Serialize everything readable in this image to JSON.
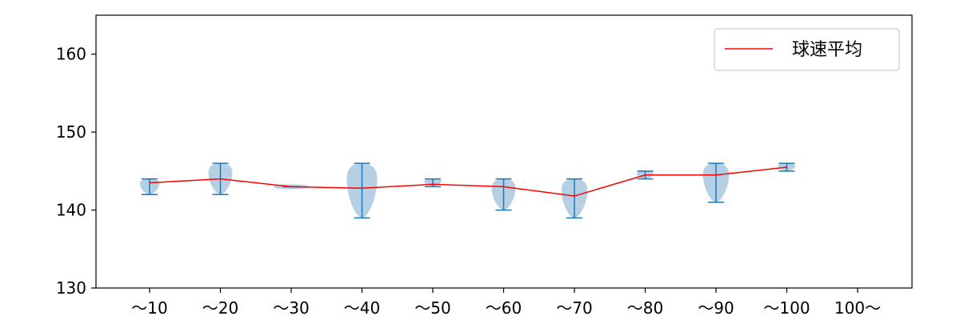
{
  "chart_data": {
    "type": "violin",
    "categories": [
      "〜10",
      "〜20",
      "〜30",
      "〜40",
      "〜50",
      "〜60",
      "〜70",
      "〜80",
      "〜90",
      "〜100",
      "100〜"
    ],
    "ylim": [
      130,
      165
    ],
    "yticks": [
      130,
      140,
      150,
      160
    ],
    "grid": false,
    "legend_position": "top-right",
    "series": [
      {
        "name": "球速平均",
        "type": "line",
        "color": "#ff0000",
        "values": [
          143.5,
          144.0,
          143.0,
          142.8,
          143.3,
          143.0,
          141.8,
          144.5,
          144.5,
          145.5,
          null
        ]
      }
    ],
    "distributions": [
      {
        "category": "〜10",
        "min": 142,
        "max": 144,
        "mean": 143.5
      },
      {
        "category": "〜20",
        "min": 142,
        "max": 146,
        "mean": 144.0
      },
      {
        "category": "〜30",
        "min": 143,
        "max": 143,
        "mean": 143.0
      },
      {
        "category": "〜40",
        "min": 139,
        "max": 146,
        "mean": 142.8
      },
      {
        "category": "〜50",
        "min": 143,
        "max": 144,
        "mean": 143.3
      },
      {
        "category": "〜60",
        "min": 140,
        "max": 144,
        "mean": 143.0
      },
      {
        "category": "〜70",
        "min": 139,
        "max": 144,
        "mean": 141.8
      },
      {
        "category": "〜80",
        "min": 144,
        "max": 145,
        "mean": 144.5
      },
      {
        "category": "〜90",
        "min": 141,
        "max": 146,
        "mean": 144.5
      },
      {
        "category": "〜100",
        "min": 145,
        "max": 146,
        "mean": 145.5
      },
      {
        "category": "100〜",
        "min": null,
        "max": null,
        "mean": null
      }
    ],
    "colors": {
      "violin_fill": "#b5d0e4",
      "whisker": "#1f77b4",
      "mean_line": "#ff0000",
      "axis": "#000000"
    }
  }
}
